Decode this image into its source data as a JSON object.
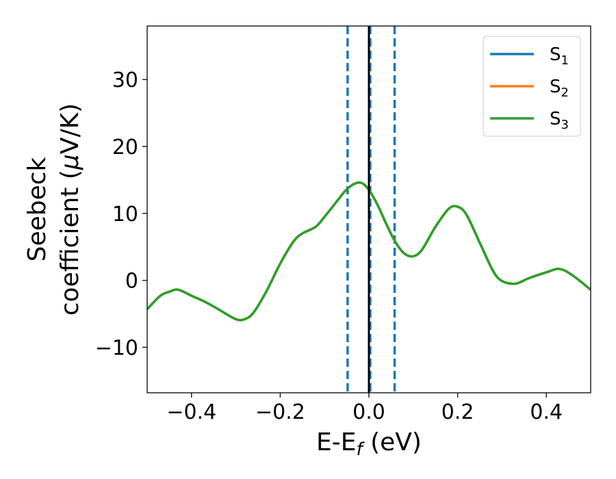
{
  "chart_data": {
    "type": "line",
    "xlabel": "E-E",
    "xlabel_sub": "f",
    "xlabel_unit": " (eV)",
    "ylabel_line1": "Seebeck",
    "ylabel_line2_pre": "coefficient  (",
    "ylabel_mu": "μ",
    "ylabel_line2_post": "V/K)",
    "xlim": [
      -0.5,
      0.5
    ],
    "ylim": [
      -16.8,
      38.0
    ],
    "x_ticks": [
      -0.4,
      -0.2,
      0.0,
      0.2,
      0.4
    ],
    "x_tick_labels": [
      "−0.4",
      "−0.2",
      "0.0",
      "0.2",
      "0.4"
    ],
    "y_ticks": [
      -10,
      0,
      10,
      20,
      30
    ],
    "y_tick_labels": [
      "−10",
      "0",
      "10",
      "20",
      "30"
    ],
    "grid": false,
    "legend_position": "top-right",
    "series": [
      {
        "name": "S",
        "sub": "1",
        "color": "#1f77b4",
        "x": [
          -0.5,
          -0.47,
          -0.45,
          -0.43,
          -0.4,
          -0.37,
          -0.34,
          -0.3,
          -0.28,
          -0.26,
          -0.23,
          -0.2,
          -0.17,
          -0.15,
          -0.12,
          -0.1,
          -0.07,
          -0.05,
          -0.03,
          -0.015,
          0.0,
          0.02,
          0.04,
          0.06,
          0.08,
          0.1,
          0.12,
          0.15,
          0.18,
          0.2,
          0.22,
          0.25,
          0.28,
          0.3,
          0.33,
          0.36,
          0.4,
          0.43,
          0.46,
          0.5
        ],
        "y": [
          -4.3,
          -2.3,
          -1.7,
          -1.4,
          -2.3,
          -3.2,
          -4.3,
          -5.8,
          -5.8,
          -4.8,
          -1.5,
          2.5,
          5.8,
          7.0,
          8.0,
          9.5,
          12.0,
          13.6,
          14.5,
          14.5,
          13.5,
          11.2,
          8.3,
          5.7,
          4.0,
          3.6,
          4.6,
          8.0,
          10.7,
          11.0,
          9.8,
          5.6,
          1.4,
          -0.1,
          -0.5,
          0.3,
          1.2,
          1.7,
          0.7,
          -1.4
        ]
      },
      {
        "name": "S",
        "sub": "2",
        "color": "#ff7f0e",
        "x": [
          -0.5,
          -0.47,
          -0.45,
          -0.43,
          -0.4,
          -0.37,
          -0.34,
          -0.3,
          -0.28,
          -0.26,
          -0.23,
          -0.2,
          -0.17,
          -0.15,
          -0.12,
          -0.1,
          -0.07,
          -0.05,
          -0.03,
          -0.015,
          0.0,
          0.02,
          0.04,
          0.06,
          0.08,
          0.1,
          0.12,
          0.15,
          0.18,
          0.2,
          0.22,
          0.25,
          0.28,
          0.3,
          0.33,
          0.36,
          0.4,
          0.43,
          0.46,
          0.5
        ],
        "y": [
          -4.3,
          -2.3,
          -1.7,
          -1.4,
          -2.3,
          -3.2,
          -4.3,
          -5.8,
          -5.8,
          -4.8,
          -1.5,
          2.5,
          5.8,
          7.0,
          8.0,
          9.5,
          12.0,
          13.6,
          14.5,
          14.5,
          13.5,
          11.2,
          8.3,
          5.7,
          4.0,
          3.6,
          4.6,
          8.0,
          10.7,
          11.0,
          9.8,
          5.6,
          1.4,
          -0.1,
          -0.5,
          0.3,
          1.2,
          1.7,
          0.7,
          -1.4
        ]
      },
      {
        "name": "S",
        "sub": "3",
        "color": "#2ca02c",
        "x": [
          -0.5,
          -0.47,
          -0.45,
          -0.43,
          -0.4,
          -0.37,
          -0.34,
          -0.3,
          -0.28,
          -0.26,
          -0.23,
          -0.2,
          -0.17,
          -0.15,
          -0.12,
          -0.1,
          -0.07,
          -0.05,
          -0.03,
          -0.015,
          0.0,
          0.02,
          0.04,
          0.06,
          0.08,
          0.1,
          0.12,
          0.15,
          0.18,
          0.2,
          0.22,
          0.25,
          0.28,
          0.3,
          0.33,
          0.36,
          0.4,
          0.43,
          0.46,
          0.5
        ],
        "y": [
          -4.3,
          -2.3,
          -1.7,
          -1.4,
          -2.3,
          -3.2,
          -4.3,
          -5.8,
          -5.8,
          -4.8,
          -1.5,
          2.5,
          5.8,
          7.0,
          8.0,
          9.5,
          12.0,
          13.6,
          14.5,
          14.5,
          13.5,
          11.2,
          8.3,
          5.7,
          4.0,
          3.6,
          4.6,
          8.0,
          10.7,
          11.0,
          9.8,
          5.6,
          1.4,
          -0.1,
          -0.5,
          0.3,
          1.2,
          1.7,
          0.7,
          -1.4
        ]
      }
    ],
    "vertical_lines": [
      {
        "x": -0.048,
        "style": "dashed",
        "color": "#1f77b4"
      },
      {
        "x": 0.003,
        "style": "dashed",
        "color": "#1f77b4"
      },
      {
        "x": 0.058,
        "style": "dashed",
        "color": "#1f77b4"
      },
      {
        "x": 0.0,
        "style": "solid",
        "color": "#000000"
      }
    ]
  }
}
